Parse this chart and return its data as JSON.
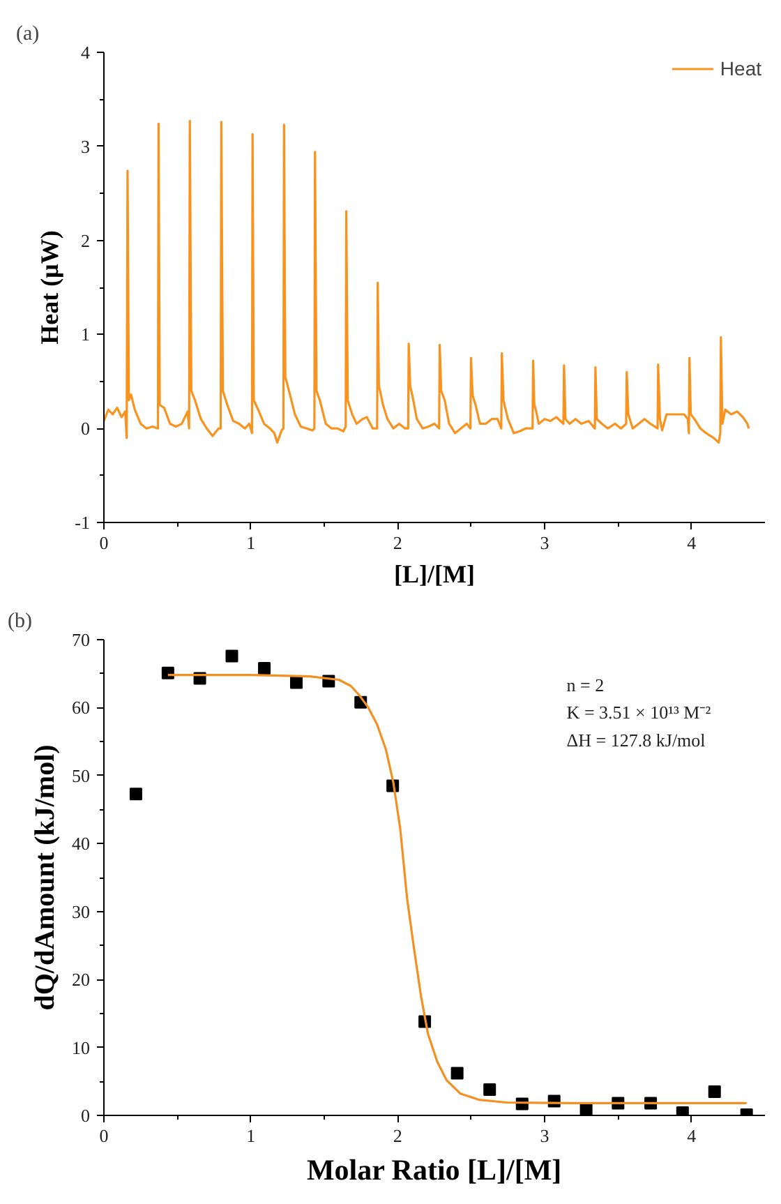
{
  "chart_data": [
    {
      "type": "line",
      "title": "(a)",
      "xlabel": "[L]/[M]",
      "ylabel": "Heat (μW)",
      "xlim": [
        0,
        4.5
      ],
      "ylim": [
        -1,
        4
      ],
      "xticks": [
        0,
        {
          "value": 0.5,
          "label": null
        },
        1,
        {
          "value": 1.5,
          "label": null
        },
        2,
        {
          "value": 2.5,
          "label": null
        },
        3,
        {
          "value": 3.5,
          "label": null
        },
        4
      ],
      "yticks": [
        -1,
        {
          "value": -0.5,
          "label": null
        },
        0,
        {
          "value": 0.5,
          "label": null
        },
        1,
        {
          "value": 1.5,
          "label": null
        },
        2,
        {
          "value": 2.5,
          "label": null
        },
        3,
        {
          "value": 3.5,
          "label": null
        },
        4
      ],
      "legend": "top right",
      "series": [
        {
          "name": "Heat",
          "color": "#f7931e",
          "x": [
            0,
            0.03,
            0.06,
            0.09,
            0.12,
            0.145,
            0.155,
            0.161,
            0.17,
            0.185,
            0.21,
            0.25,
            0.29,
            0.33,
            0.368,
            0.372,
            0.38,
            0.41,
            0.45,
            0.49,
            0.53,
            0.57,
            0.58,
            0.585,
            0.595,
            0.62,
            0.66,
            0.7,
            0.74,
            0.78,
            0.795,
            0.799,
            0.81,
            0.84,
            0.88,
            0.92,
            0.96,
            0.99,
            1.008,
            1.012,
            1.02,
            1.05,
            1.09,
            1.13,
            1.16,
            1.18,
            1.21,
            1.222,
            1.226,
            1.235,
            1.26,
            1.3,
            1.34,
            1.38,
            1.42,
            1.433,
            1.437,
            1.447,
            1.47,
            1.51,
            1.55,
            1.59,
            1.63,
            1.646,
            1.65,
            1.66,
            1.69,
            1.72,
            1.76,
            1.79,
            1.83,
            1.86,
            1.864,
            1.872,
            1.88,
            1.9,
            1.93,
            1.97,
            2.01,
            2.05,
            2.071,
            2.075,
            2.085,
            2.1,
            2.13,
            2.17,
            2.21,
            2.25,
            2.282,
            2.286,
            2.296,
            2.32,
            2.35,
            2.39,
            2.43,
            2.47,
            2.495,
            2.499,
            2.51,
            2.53,
            2.56,
            2.6,
            2.64,
            2.68,
            2.705,
            2.709,
            2.72,
            2.75,
            2.79,
            2.83,
            2.87,
            2.918,
            2.922,
            2.93,
            2.94,
            2.96,
            3,
            3.04,
            3.08,
            3.128,
            3.132,
            3.142,
            3.17,
            3.21,
            3.25,
            3.3,
            3.342,
            3.346,
            3.355,
            3.39,
            3.43,
            3.48,
            3.52,
            3.555,
            3.559,
            3.57,
            3.6,
            3.64,
            3.68,
            3.72,
            3.769,
            3.773,
            3.785,
            3.8,
            3.83,
            3.87,
            3.91,
            3.95,
            3.975,
            3.982,
            3.986,
            3.995,
            4.02,
            4.06,
            4.1,
            4.15,
            4.185,
            4.196,
            4.2,
            4.21,
            4.23,
            4.27,
            4.31,
            4.35,
            4.38,
            4.39
          ],
          "values": [
            0.08,
            0.2,
            0.15,
            0.22,
            0.12,
            0.18,
            -0.1,
            2.74,
            0.3,
            0.36,
            0.2,
            0.05,
            0,
            0.02,
            0,
            3.24,
            0.25,
            0.22,
            0.05,
            0.02,
            0.05,
            0.18,
            0,
            3.27,
            0.4,
            0.3,
            0.1,
            0,
            -0.08,
            0,
            0,
            3.26,
            0.4,
            0.25,
            0.08,
            0.05,
            0,
            0.05,
            -0.05,
            3.13,
            0.3,
            0.2,
            0.05,
            0,
            -0.05,
            -0.15,
            -0.02,
            0,
            3.23,
            0.55,
            0.4,
            0.15,
            0.02,
            0,
            -0.02,
            0,
            2.94,
            0.4,
            0.3,
            0.05,
            0,
            0,
            -0.03,
            0.02,
            2.31,
            0.3,
            0.15,
            0.05,
            0.1,
            0.12,
            0,
            0,
            1.55,
            0.45,
            0.4,
            0.25,
            0.1,
            0,
            0.05,
            0,
            0,
            0.9,
            0.45,
            0.35,
            0.1,
            0,
            0.02,
            0.05,
            0,
            0.89,
            0.4,
            0.3,
            0.05,
            -0.05,
            0,
            0.05,
            0,
            0.75,
            0.35,
            0.25,
            0.05,
            0.05,
            0.1,
            0.1,
            0,
            0.8,
            0.3,
            0.1,
            -0.05,
            -0.03,
            0,
            0,
            0.72,
            0.25,
            0.2,
            0.05,
            0.1,
            0.08,
            0.12,
            0.05,
            0.67,
            0.1,
            0.05,
            0.1,
            0.05,
            0.08,
            0,
            0.65,
            0.1,
            0.05,
            0,
            0.05,
            0,
            0.05,
            0.6,
            0.15,
            0,
            0.05,
            0.1,
            0.05,
            0,
            0.68,
            0.1,
            -0.02,
            0.15,
            0.15,
            0.15,
            0.15,
            0.1,
            -0.05,
            0.75,
            0.15,
            0.1,
            0,
            -0.05,
            -0.1,
            -0.15,
            -0.05,
            0.97,
            0.05,
            0.2,
            0.15,
            0.18,
            0.12,
            0.05,
            0
          ]
        }
      ]
    },
    {
      "type": "scatter",
      "title": "(b)",
      "xlabel": "Molar Ratio [L]/[M]",
      "ylabel": "dQ/dAmount (kJ/mol)",
      "xlim": [
        0,
        4.5
      ],
      "ylim": [
        0,
        70
      ],
      "xticks": [
        0,
        {
          "value": 0.5,
          "label": null
        },
        1,
        {
          "value": 1.5,
          "label": null
        },
        2,
        {
          "value": 2.5,
          "label": null
        },
        3,
        {
          "value": 3.5,
          "label": null
        },
        4
      ],
      "yticks": [
        0,
        {
          "value": 5,
          "label": null
        },
        10,
        {
          "value": 15,
          "label": null
        },
        20,
        {
          "value": 25,
          "label": null
        },
        30,
        {
          "value": 35,
          "label": null
        },
        40,
        {
          "value": 45,
          "label": null
        },
        50,
        {
          "value": 55,
          "label": null
        },
        60,
        {
          "value": 65,
          "label": null
        },
        70
      ],
      "annotations": [
        "n = 2",
        "K = 3.51 × 10¹³ M⁻²",
        "ΔH = 127.8 kJ/mol"
      ],
      "series": [
        {
          "type": "scatter",
          "marker": "square",
          "color": "#000000",
          "x": [
            0.218,
            0.436,
            0.653,
            0.871,
            1.092,
            1.31,
            1.53,
            1.748,
            1.966,
            2.184,
            2.405,
            2.626,
            2.847,
            3.065,
            3.283,
            3.5,
            3.722,
            3.939,
            4.157,
            4.375
          ],
          "values": [
            47.3,
            65.1,
            64.3,
            67.6,
            65.8,
            63.7,
            63.9,
            60.8,
            48.5,
            13.8,
            6.2,
            3.8,
            1.7,
            2.1,
            0.8,
            1.8,
            1.8,
            0.4,
            3.5,
            0.1
          ]
        },
        {
          "type": "line",
          "color": "#f39021",
          "x": [
            0.436,
            1.0,
            1.4,
            1.6,
            1.68,
            1.74,
            1.8,
            1.86,
            1.92,
            1.97,
            2.017,
            2.064,
            2.112,
            2.159,
            2.206,
            2.269,
            2.332,
            2.427,
            2.553,
            2.742,
            3.2,
            4.375
          ],
          "values": [
            64.8,
            64.8,
            64.6,
            64.1,
            63.2,
            61.8,
            60.0,
            57.5,
            53.8,
            49.0,
            42.2,
            31.9,
            24.4,
            17.5,
            12.0,
            7.9,
            5.2,
            3.2,
            2.3,
            1.9,
            1.8,
            1.8
          ]
        }
      ]
    }
  ]
}
